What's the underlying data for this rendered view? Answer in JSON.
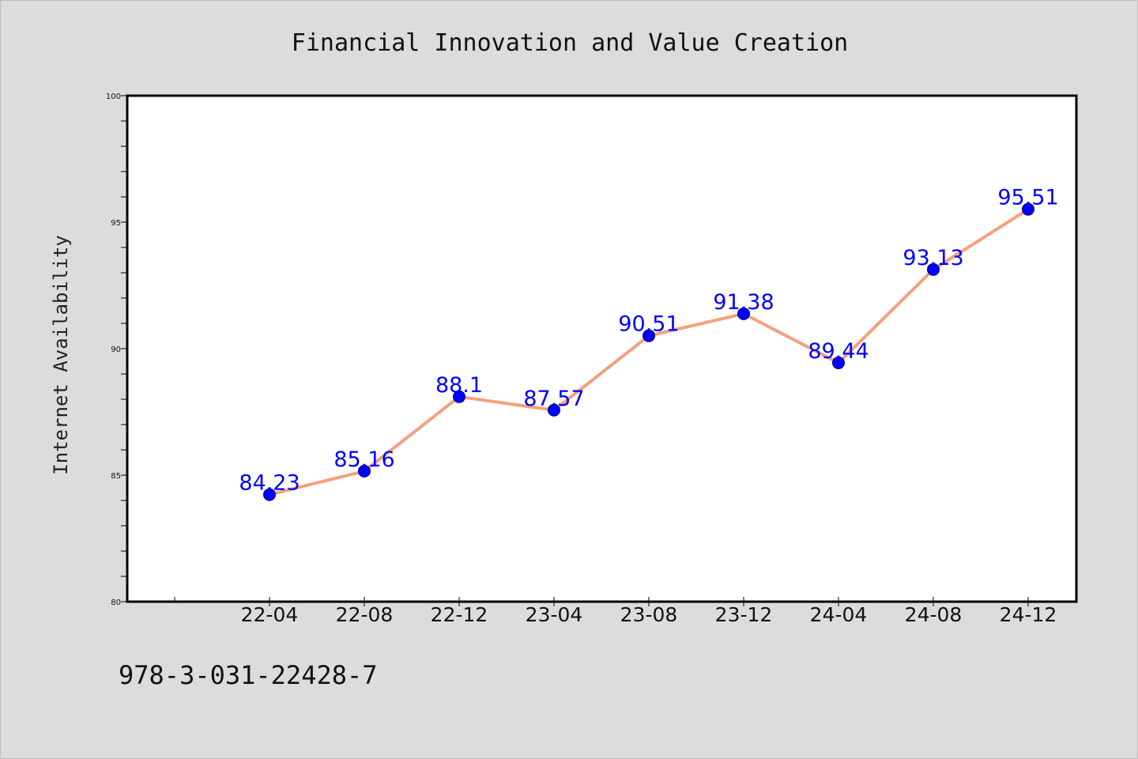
{
  "chart_data": {
    "type": "line",
    "title": "Financial Innovation and Value Creation",
    "xlabel": "",
    "ylabel": "Internet Availability",
    "categories": [
      "22-04",
      "22-08",
      "22-12",
      "23-04",
      "23-08",
      "23-12",
      "24-04",
      "24-08",
      "24-12"
    ],
    "series": [
      {
        "values": [
          84.23,
          85.16,
          88.1,
          87.57,
          90.51,
          91.38,
          89.44,
          93.13,
          95.51
        ],
        "labels": [
          "84.23",
          "85.16",
          "88.1",
          "87.57",
          "90.51",
          "91.38",
          "89.44",
          "93.13",
          "95.51"
        ]
      }
    ],
    "ylim": [
      80,
      100
    ],
    "yticks": [
      "80",
      "85",
      "90",
      "95",
      "100"
    ],
    "grid": false,
    "colors": {
      "line": "#f4a07e",
      "marker": "#0000ff",
      "data_label": "#0000ff",
      "background": "#dcdcdc",
      "plot_background": "#ffffff"
    }
  },
  "annotation": {
    "isbn": "978-3-031-22428-7"
  }
}
